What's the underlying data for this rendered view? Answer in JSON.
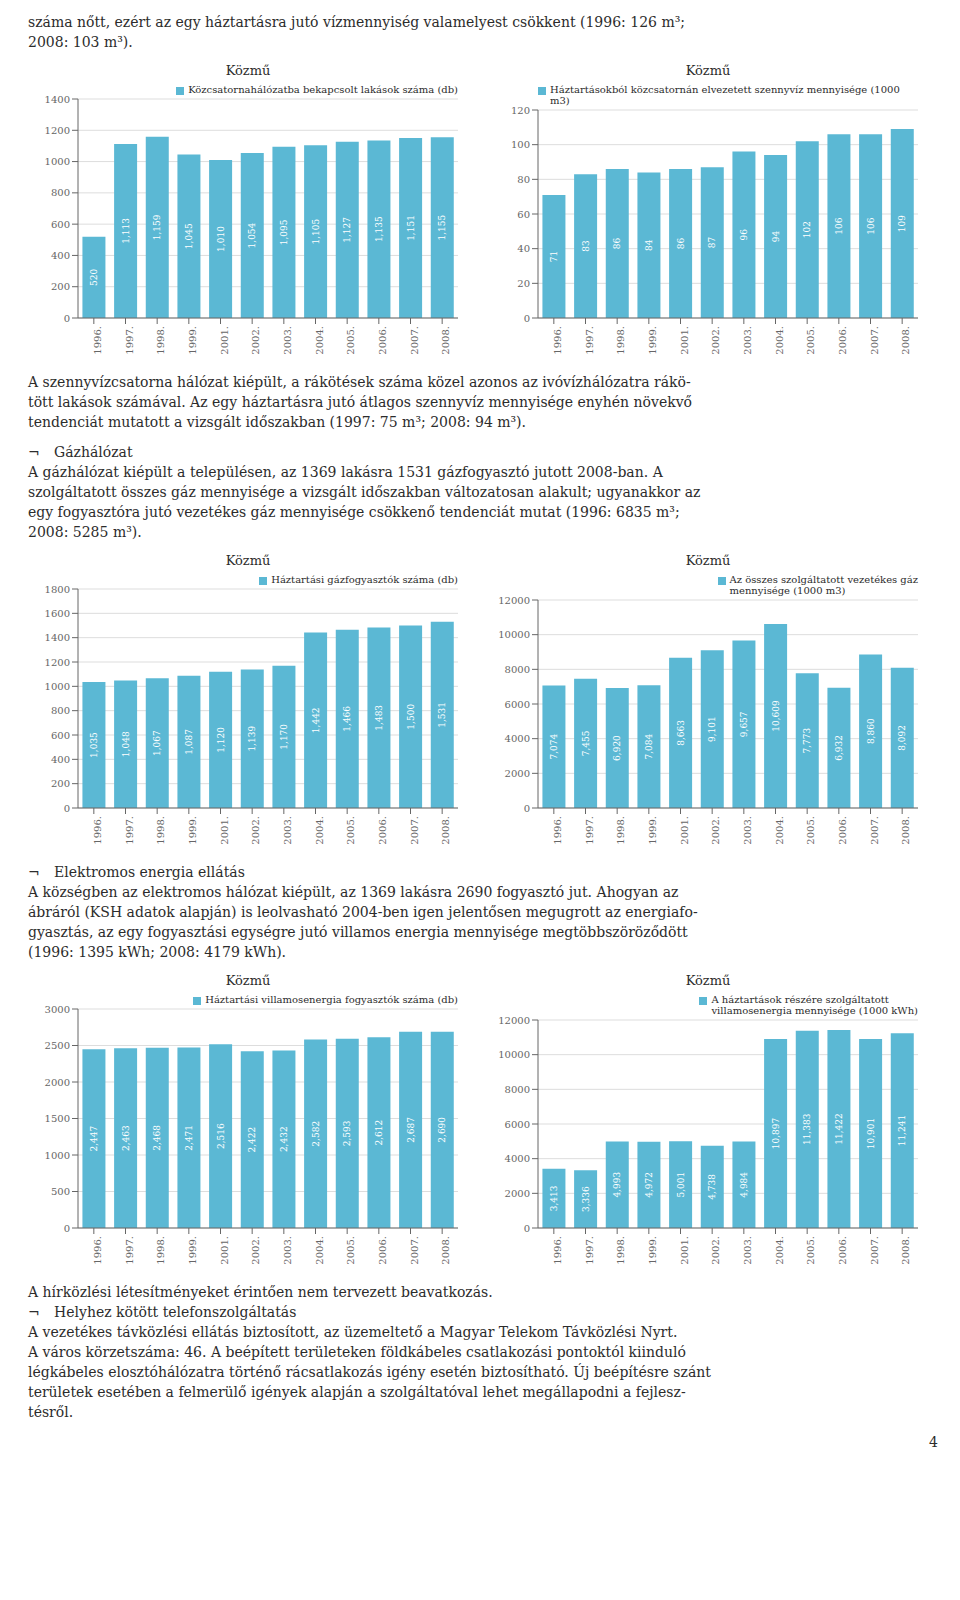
{
  "chart_data": [
    {
      "type": "bar",
      "title": "Közmű",
      "categories": [
        "1996.",
        "1997.",
        "1998.",
        "1999.",
        "2001.",
        "2002.",
        "2003.",
        "2004.",
        "2005.",
        "2006.",
        "2007.",
        "2008."
      ],
      "series": [
        {
          "name": "Közcsatornahálózatba bekapcsolt lakások száma (db)",
          "color": "#5BB8D4",
          "values": [
            520,
            1113,
            1159,
            1045,
            1010,
            1054,
            1095,
            1105,
            1127,
            1135,
            1151,
            1155
          ],
          "value_labels": [
            "520",
            "1,113",
            "1,159",
            "1,045",
            "1,010",
            "1,054",
            "1,095",
            "1,105",
            "1,127",
            "1,135",
            "1,151",
            "1,155"
          ]
        }
      ],
      "ylim": [
        0,
        1400
      ],
      "yticks": [
        0,
        200,
        400,
        600,
        800,
        1000,
        1200,
        1400
      ],
      "grid": true,
      "legend": "upper right",
      "data_labels": true
    },
    {
      "type": "bar",
      "title": "Közmű",
      "categories": [
        "1996.",
        "1997.",
        "1998.",
        "1999.",
        "2001.",
        "2002.",
        "2003.",
        "2004.",
        "2005.",
        "2006.",
        "2007.",
        "2008."
      ],
      "series": [
        {
          "name": "Háztartásokból közcsatornán elvezetett szennyvíz mennyisége (1000 m3)",
          "color": "#5BB8D4",
          "values": [
            71,
            83,
            86,
            84,
            86,
            87,
            96,
            94,
            102,
            106,
            106,
            109
          ]
        }
      ],
      "ylim": [
        0,
        120
      ],
      "yticks": [
        0,
        20,
        40,
        60,
        80,
        100,
        120
      ],
      "grid": true,
      "legend": "upper right",
      "data_labels": true
    },
    {
      "type": "bar",
      "title": "Közmű",
      "categories": [
        "1996.",
        "1997.",
        "1998.",
        "1999.",
        "2001.",
        "2002.",
        "2003.",
        "2004.",
        "2005.",
        "2006.",
        "2007.",
        "2008."
      ],
      "series": [
        {
          "name": "Háztartási gázfogyasztók száma (db)",
          "color": "#5BB8D4",
          "values": [
            1035,
            1048,
            1067,
            1087,
            1120,
            1139,
            1170,
            1442,
            1466,
            1483,
            1500,
            1531
          ],
          "value_labels": [
            "1,035",
            "1,048",
            "1,067",
            "1,087",
            "1,120",
            "1,139",
            "1,170",
            "1,442",
            "1,466",
            "1,483",
            "1,500",
            "1,531"
          ]
        }
      ],
      "ylim": [
        0,
        1800
      ],
      "yticks": [
        0,
        200,
        400,
        600,
        800,
        1000,
        1200,
        1400,
        1600,
        1800
      ],
      "grid": true,
      "legend": "upper right",
      "data_labels": true
    },
    {
      "type": "bar",
      "title": "Közmű",
      "categories": [
        "1996.",
        "1997.",
        "1998.",
        "1999.",
        "2001.",
        "2002.",
        "2003.",
        "2004.",
        "2005.",
        "2006.",
        "2007.",
        "2008."
      ],
      "series": [
        {
          "name": "Az összes szolgáltatott vezetékes gáz\nmennyisége (1000 m3)",
          "color": "#5BB8D4",
          "values": [
            7074,
            7455,
            6920,
            7084,
            8663,
            9101,
            9657,
            10609,
            7773,
            6932,
            8860,
            8092
          ],
          "value_labels": [
            "7,074",
            "7,455",
            "6,920",
            "7,084",
            "8,663",
            "9,101",
            "9,657",
            "10,609",
            "7,773",
            "6,932",
            "8,860",
            "8,092"
          ]
        }
      ],
      "ylim": [
        0,
        12000
      ],
      "yticks": [
        0,
        2000,
        4000,
        6000,
        8000,
        10000,
        12000
      ],
      "grid": true,
      "legend": "upper right",
      "data_labels": true
    },
    {
      "type": "bar",
      "title": "Közmű",
      "categories": [
        "1996.",
        "1997.",
        "1998.",
        "1999.",
        "2001.",
        "2002.",
        "2003.",
        "2004.",
        "2005.",
        "2006.",
        "2007.",
        "2008."
      ],
      "series": [
        {
          "name": "Háztartási villamosenergia fogyasztók száma (db)",
          "color": "#5BB8D4",
          "values": [
            2447,
            2463,
            2468,
            2471,
            2516,
            2422,
            2432,
            2582,
            2593,
            2612,
            2687,
            2690
          ],
          "value_labels": [
            "2,447",
            "2,463",
            "2,468",
            "2,471",
            "2,516",
            "2,422",
            "2,432",
            "2,582",
            "2,593",
            "2,612",
            "2,687",
            "2,690"
          ]
        }
      ],
      "ylim": [
        0,
        3000
      ],
      "yticks": [
        0,
        500,
        1000,
        1500,
        2000,
        2500,
        3000
      ],
      "grid": true,
      "legend": "upper right",
      "data_labels": true
    },
    {
      "type": "bar",
      "title": "Közmű",
      "categories": [
        "1996.",
        "1997.",
        "1998.",
        "1999.",
        "2001.",
        "2002.",
        "2003.",
        "2004.",
        "2005.",
        "2006.",
        "2007.",
        "2008."
      ],
      "series": [
        {
          "name": "A háztartások részére szolgáltatott\nvillamosenergia mennyisége (1000 kWh)",
          "color": "#5BB8D4",
          "values": [
            3413,
            3336,
            4993,
            4972,
            5001,
            4738,
            4984,
            10897,
            11383,
            11422,
            10901,
            11241
          ],
          "value_labels": [
            "3,413",
            "3,336",
            "4,993",
            "4,972",
            "5,001",
            "4,738",
            "4,984",
            "10,897",
            "11,383",
            "11,422",
            "10,901",
            "11,241"
          ]
        }
      ],
      "ylim": [
        0,
        12000
      ],
      "yticks": [
        0,
        2000,
        4000,
        6000,
        8000,
        10000,
        12000
      ],
      "grid": true,
      "legend": "upper right",
      "data_labels": true
    }
  ],
  "annotations": [
    [
      "száma nőtt, ezért az egy háztartásra jutó vízmennyiség valamelyest csökkent (1996: 126 m³;",
      "2008: 103 m³)."
    ],
    [
      "A szennyvízcsatorna hálózat kiépült, a rákötések száma közel azonos az ivóvízhálózatra rákö-",
      "tött lakások számával. Az egy háztartásra jutó átlagos szennyvíz mennyisége enyhén növekvő",
      "tendenciát mutatott a vizsgált időszakban (1997: 75 m³; 2008: 94 m³)."
    ],
    [
      [
        "¬",
        "Gázhálózat"
      ],
      "A gázhálózat kiépült a településen, az 1369 lakásra 1531 gázfogyasztó jutott 2008-ban. A",
      "szolgáltatott összes gáz mennyisége a vizsgált időszakban változatosan alakult; ugyanakkor az",
      "egy fogyasztóra jutó vezetékes gáz mennyisége csökkenő tendenciát mutat (1996: 6835 m³;",
      "2008: 5285 m³)."
    ],
    [
      [
        "¬",
        "Elektromos energia ellátás"
      ],
      "A községben az elektromos hálózat kiépült, az 1369 lakásra 2690 fogyasztó jut. Ahogyan az",
      "ábráról (KSH adatok alapján) is leolvasható 2004-ben igen jelentősen megugrott az energiafo-",
      "gyasztás, az egy fogyasztási egységre jutó villamos energia mennyisége megtöbbszöröződött",
      "(1996: 1395 kWh; 2008: 4179 kWh)."
    ],
    [
      "A hírközlési létesítményeket érintően nem tervezett beavatkozás.",
      [
        "¬",
        "Helyhez kötött telefonszolgáltatás"
      ],
      "A vezetékes távközlési ellátás biztosított, az üzemeltető a Magyar Telekom Távközlési Nyrt.",
      "A város körzetszáma: 46. A beépített területeken földkábeles csatlakozási pontoktól kiinduló",
      "légkábeles elosztóhálózatra történő rácsatlakozás igény esetén biztosítható. Új beépítésre szánt",
      "területek esetében a felmerülő igények alapján a szolgáltatóval lehet megállapodni a fejlesz-",
      "tésről."
    ],
    [
      "4"
    ]
  ]
}
